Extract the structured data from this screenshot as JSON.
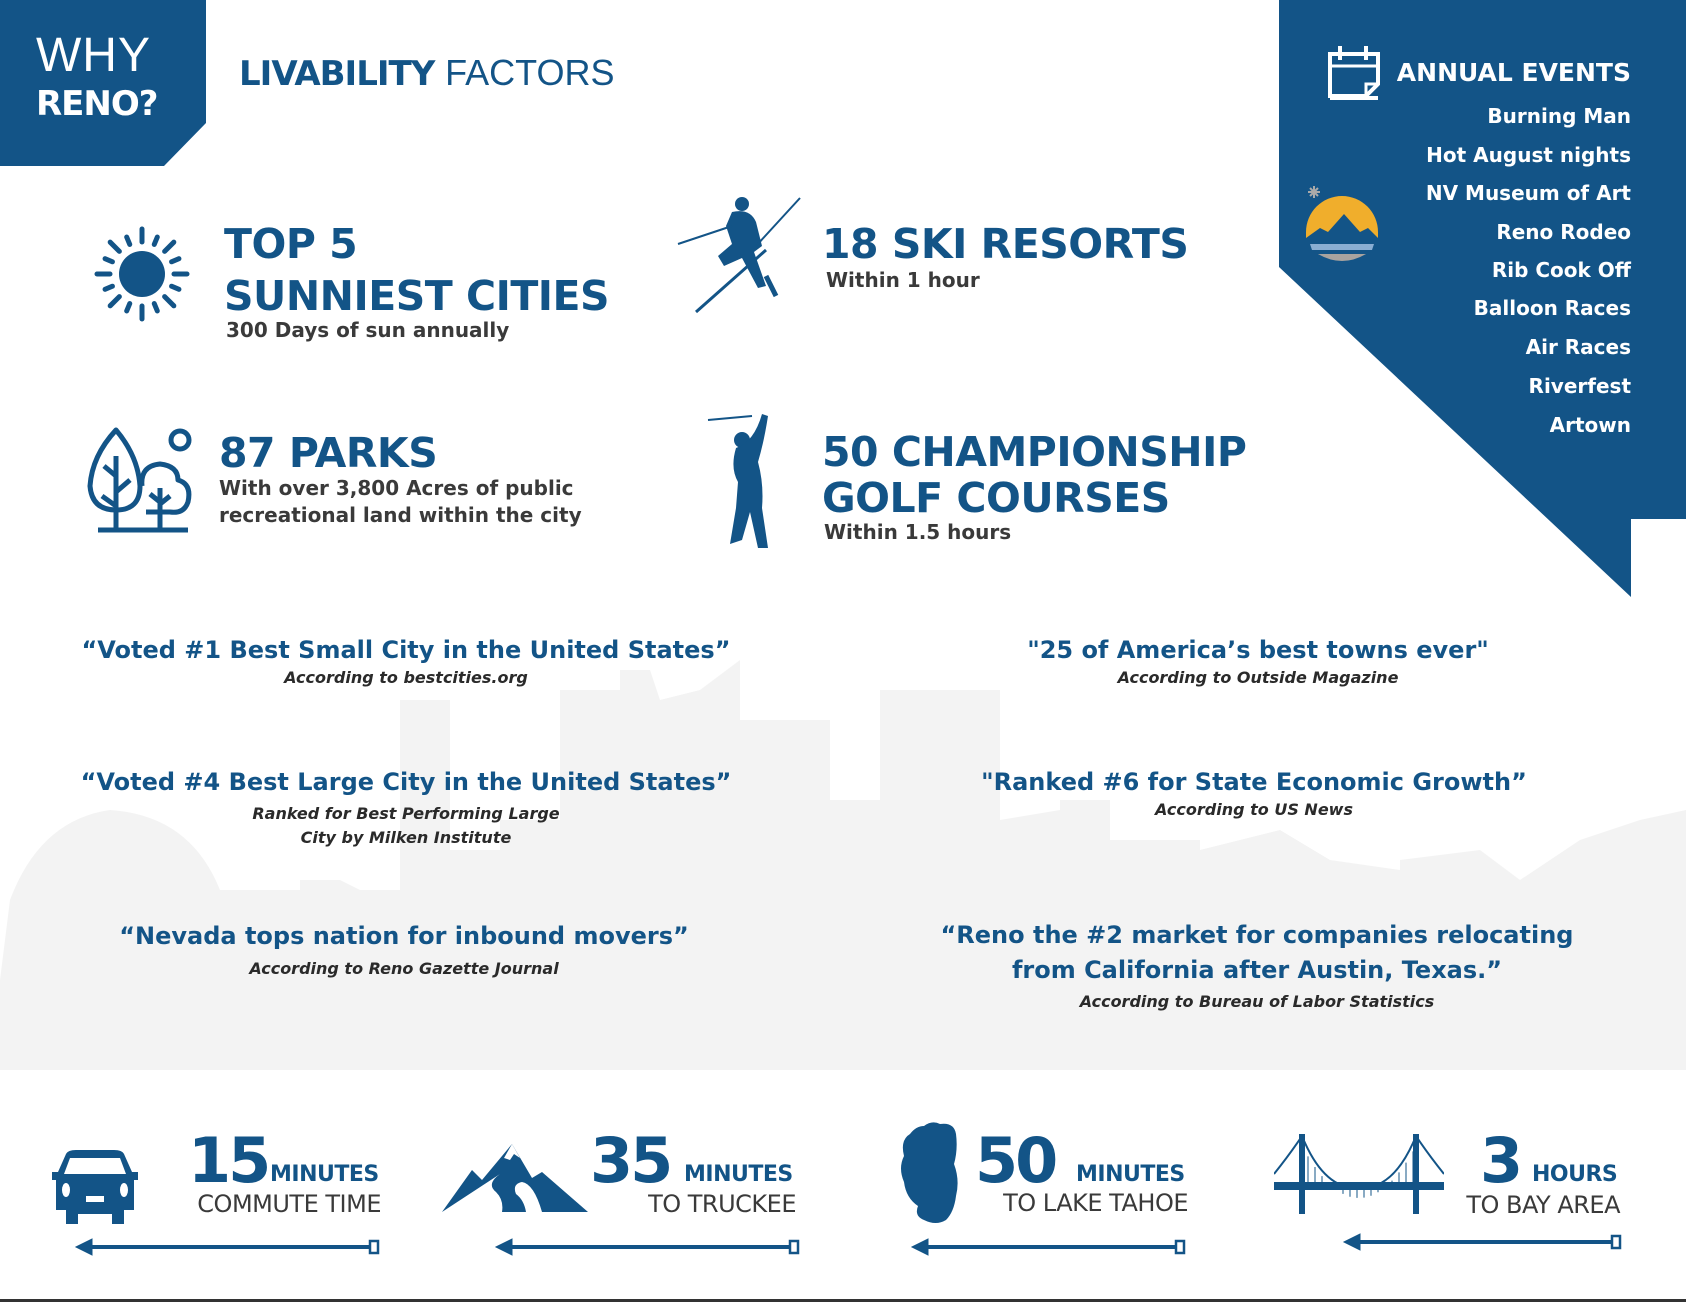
{
  "colors": {
    "brand_blue": "#135487",
    "text_dark": "#3a3a3a",
    "skyline_gray": "#f2f2f2",
    "logo_gold": "#f0ae2c",
    "logo_water": "#8aaed3"
  },
  "corner": {
    "line1": "WHY",
    "line2": "RENO?"
  },
  "heading": {
    "bold": "LIVABILITY",
    "light": "FACTORS"
  },
  "factors": [
    {
      "icon": "sun-icon",
      "title_lines": [
        "TOP 5",
        "SUNNIEST CITIES"
      ],
      "subtitle": "300 Days of sun annually"
    },
    {
      "icon": "skier-icon",
      "title_lines": [
        "18 SKI RESORTS"
      ],
      "subtitle": "Within 1 hour"
    },
    {
      "icon": "trees-icon",
      "title_lines": [
        "87 PARKS"
      ],
      "subtitle_lines": [
        "With over 3,800 Acres of public",
        "recreational land within the city"
      ]
    },
    {
      "icon": "golfer-icon",
      "title_lines": [
        "50 CHAMPIONSHIP",
        "GOLF COURSES"
      ],
      "subtitle": "Within 1.5 hours"
    }
  ],
  "events": {
    "icon": "calendar-icon",
    "title": "ANNUAL EVENTS",
    "items": [
      "Burning Man",
      "Hot August nights",
      "NV Museum of Art",
      "Reno Rodeo",
      "Rib Cook Off",
      "Balloon Races",
      "Air Races",
      "Riverfest",
      "Artown"
    ]
  },
  "quotes": [
    {
      "quote": "“Voted #1 Best Small City in the United States”",
      "source_lines": [
        "According to bestcities.org"
      ]
    },
    {
      "quote": "\"25 of America’s best towns ever\"",
      "source_lines": [
        "According to Outside Magazine"
      ]
    },
    {
      "quote": "“Voted #4 Best Large City in the United States”",
      "source_lines": [
        "Ranked for Best Performing Large",
        "City by Milken Institute"
      ]
    },
    {
      "quote": "\"Ranked #6 for State Economic Growth”",
      "source_lines": [
        "According to US News"
      ]
    },
    {
      "quote": "“Nevada tops nation for inbound movers”",
      "source_lines": [
        "According to Reno Gazette Journal"
      ]
    },
    {
      "quote_lines": [
        "“Reno the #2 market for companies relocating",
        "from California after Austin, Texas.”"
      ],
      "source_lines": [
        "According to Bureau of Labor Statistics"
      ]
    }
  ],
  "distances": [
    {
      "icon": "car-icon",
      "value": "15",
      "unit": "MINUTES",
      "label": "COMMUTE TIME"
    },
    {
      "icon": "mountain-icon",
      "value": "35",
      "unit": "MINUTES",
      "label": "TO TRUCKEE"
    },
    {
      "icon": "lake-tahoe-icon",
      "value": "50",
      "unit": "MINUTES",
      "label": "TO LAKE TAHOE"
    },
    {
      "icon": "bridge-icon",
      "value": "3",
      "unit": "HOURS",
      "label": "TO BAY AREA"
    }
  ]
}
